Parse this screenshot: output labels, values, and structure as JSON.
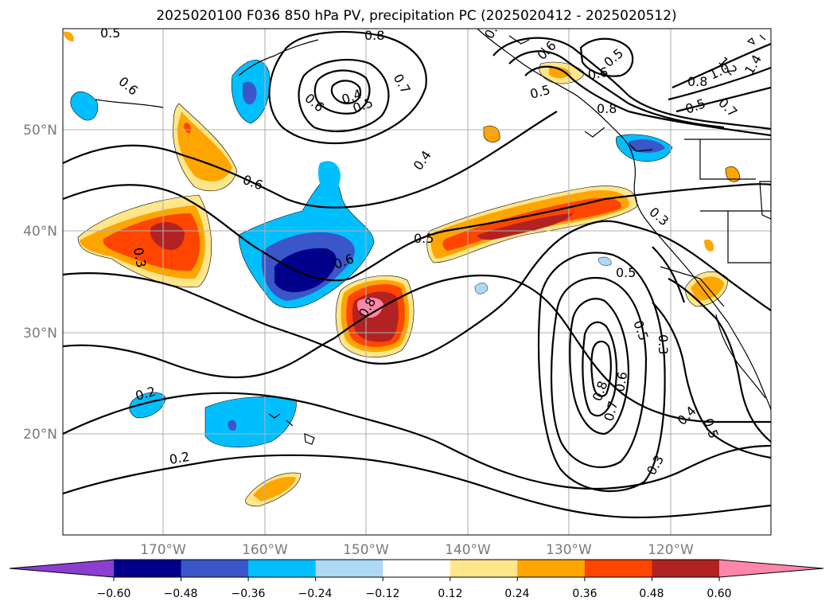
{
  "title": "2025020100 F036 850 hPa PV, precipitation PC (2025020412 - 2025020512)",
  "map": {
    "lat_labels": [
      "50°N",
      "40°N",
      "30°N",
      "20°N"
    ],
    "lon_labels": [
      "170°W",
      "160°W",
      "150°W",
      "140°W",
      "130°W",
      "120°W"
    ],
    "contour_labels": [
      "0.5",
      "0.8",
      "0.6",
      "0.6",
      "0.4",
      "0.5",
      "0.7",
      "0.6",
      "0.5",
      "0.6",
      "0.5",
      "0.8",
      "0.8",
      "1.2",
      "1.4",
      "1.0",
      "0.5",
      "0.7",
      "0.4",
      "0.6",
      "0.3",
      "0.5",
      "0.6",
      "0.8",
      "0.3",
      "0.5",
      "0.5",
      "0.3",
      "0.8",
      "0.6",
      "0.7",
      "0.3",
      "0.4",
      "0.5",
      "0.2",
      "0.2",
      "0.3"
    ]
  },
  "colorbar": {
    "ticks": [
      "−0.60",
      "−0.48",
      "−0.36",
      "−0.24",
      "−0.12",
      "0.12",
      "0.24",
      "0.36",
      "0.48",
      "0.60"
    ],
    "colors": [
      "#8a3fd1",
      "#00008b",
      "#3a56c8",
      "#00bfff",
      "#add8f6",
      "#ffffff",
      "#ffe68a",
      "#ffa500",
      "#ff4500",
      "#b22222",
      "#ff86a8"
    ]
  }
}
